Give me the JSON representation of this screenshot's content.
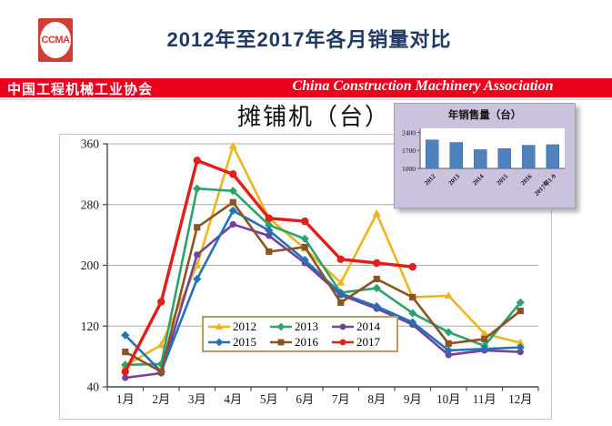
{
  "header": {
    "logo_text": "CCMA",
    "title": "2012年至2017年各月销量对比",
    "banner_cn": "中国工程机械工业协会",
    "banner_en": "China Construction Machinery Association"
  },
  "colors": {
    "banner_red": "#e8001c",
    "logo_red": "#d23c32",
    "title_navy": "#1f3864",
    "gridline": "#a8a8a8",
    "axis": "#3d4d52",
    "legend_border": "#c09a5a"
  },
  "chart_data": [
    {
      "type": "line",
      "title": "摊铺机（台）",
      "categories": [
        "1月",
        "2月",
        "3月",
        "4月",
        "5月",
        "6月",
        "7月",
        "8月",
        "9月",
        "10月",
        "11月",
        "12月"
      ],
      "yticks": [
        40,
        120,
        200,
        280,
        360
      ],
      "ylim": [
        40,
        360
      ],
      "grid": true,
      "legend_position": "inside-bottom",
      "series": [
        {
          "name": "2012",
          "color": "#edb51d",
          "marker": "triangle",
          "values": [
            68,
            95,
            200,
            357,
            262,
            222,
            177,
            268,
            158,
            160,
            110,
            98
          ]
        },
        {
          "name": "2013",
          "color": "#29a56c",
          "marker": "diamond",
          "values": [
            69,
            70,
            301,
            298,
            253,
            235,
            164,
            170,
            137,
            112,
            94,
            151
          ]
        },
        {
          "name": "2014",
          "color": "#6f42a0",
          "marker": "circle",
          "values": [
            52,
            58,
            214,
            254,
            239,
            203,
            161,
            143,
            122,
            82,
            88,
            86
          ]
        },
        {
          "name": "2015",
          "color": "#2473b5",
          "marker": "diamond",
          "values": [
            108,
            60,
            182,
            272,
            246,
            207,
            163,
            146,
            125,
            88,
            90,
            92
          ]
        },
        {
          "name": "2016",
          "color": "#8c5323",
          "marker": "square",
          "values": [
            86,
            60,
            250,
            283,
            218,
            224,
            151,
            182,
            158,
            97,
            103,
            140
          ]
        },
        {
          "name": "2017",
          "color": "#e31e18",
          "marker": "circle",
          "values": [
            60,
            152,
            338,
            320,
            262,
            258,
            208,
            203,
            198
          ]
        }
      ]
    },
    {
      "type": "bar",
      "title": "年销售量（台）",
      "categories": [
        "2012",
        "2013",
        "2014",
        "2015",
        "2016",
        "2017年1-9"
      ],
      "values": [
        2110,
        2010,
        1730,
        1770,
        1900,
        1925
      ],
      "yticks": [
        1000,
        1700,
        2400
      ],
      "ylim": [
        1000,
        2560
      ],
      "bar_color": "#4f81bd",
      "panel_bg": "#cbc3dd"
    }
  ]
}
